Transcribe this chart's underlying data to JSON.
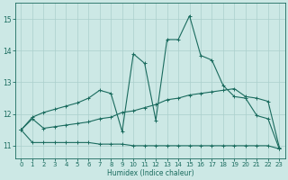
{
  "xlabel": "Humidex (Indice chaleur)",
  "xlim": [
    -0.5,
    23.5
  ],
  "ylim": [
    10.6,
    15.5
  ],
  "yticks": [
    11,
    12,
    13,
    14,
    15
  ],
  "xticks": [
    0,
    1,
    2,
    3,
    4,
    5,
    6,
    7,
    8,
    9,
    10,
    11,
    12,
    13,
    14,
    15,
    16,
    17,
    18,
    19,
    20,
    21,
    22,
    23
  ],
  "bg_color": "#cce8e5",
  "grid_color": "#aacfcc",
  "line_color": "#1a6b5e",
  "series1_x": [
    0,
    1,
    2,
    3,
    4,
    5,
    6,
    7,
    8,
    9,
    10,
    11,
    12,
    13,
    14,
    15,
    16,
    17,
    18,
    19,
    20,
    21,
    22,
    23
  ],
  "series1_y": [
    11.5,
    11.1,
    11.1,
    11.1,
    11.1,
    11.1,
    11.1,
    11.05,
    11.05,
    11.05,
    11.0,
    11.0,
    11.0,
    11.0,
    11.0,
    11.0,
    11.0,
    11.0,
    11.0,
    11.0,
    11.0,
    11.0,
    11.0,
    10.9
  ],
  "series2_x": [
    0,
    1,
    2,
    3,
    4,
    5,
    6,
    7,
    8,
    9,
    10,
    11,
    12,
    13,
    14,
    15,
    16,
    17,
    18,
    19,
    20,
    21,
    22,
    23
  ],
  "series2_y": [
    11.5,
    11.85,
    11.55,
    11.6,
    11.65,
    11.7,
    11.75,
    11.85,
    11.9,
    12.05,
    12.1,
    12.2,
    12.3,
    12.45,
    12.5,
    12.6,
    12.65,
    12.7,
    12.75,
    12.8,
    12.55,
    12.5,
    12.4,
    10.95
  ],
  "series3_x": [
    0,
    1,
    2,
    3,
    4,
    5,
    6,
    7,
    8,
    9,
    10,
    11,
    12,
    13,
    14,
    15,
    16,
    17,
    18,
    19,
    20,
    21,
    22,
    23
  ],
  "series3_y": [
    11.5,
    11.9,
    12.05,
    12.15,
    12.25,
    12.35,
    12.5,
    12.75,
    12.65,
    11.45,
    13.9,
    13.6,
    11.8,
    14.35,
    14.35,
    15.1,
    13.85,
    13.7,
    12.9,
    12.55,
    12.5,
    11.95,
    11.85,
    10.9
  ]
}
